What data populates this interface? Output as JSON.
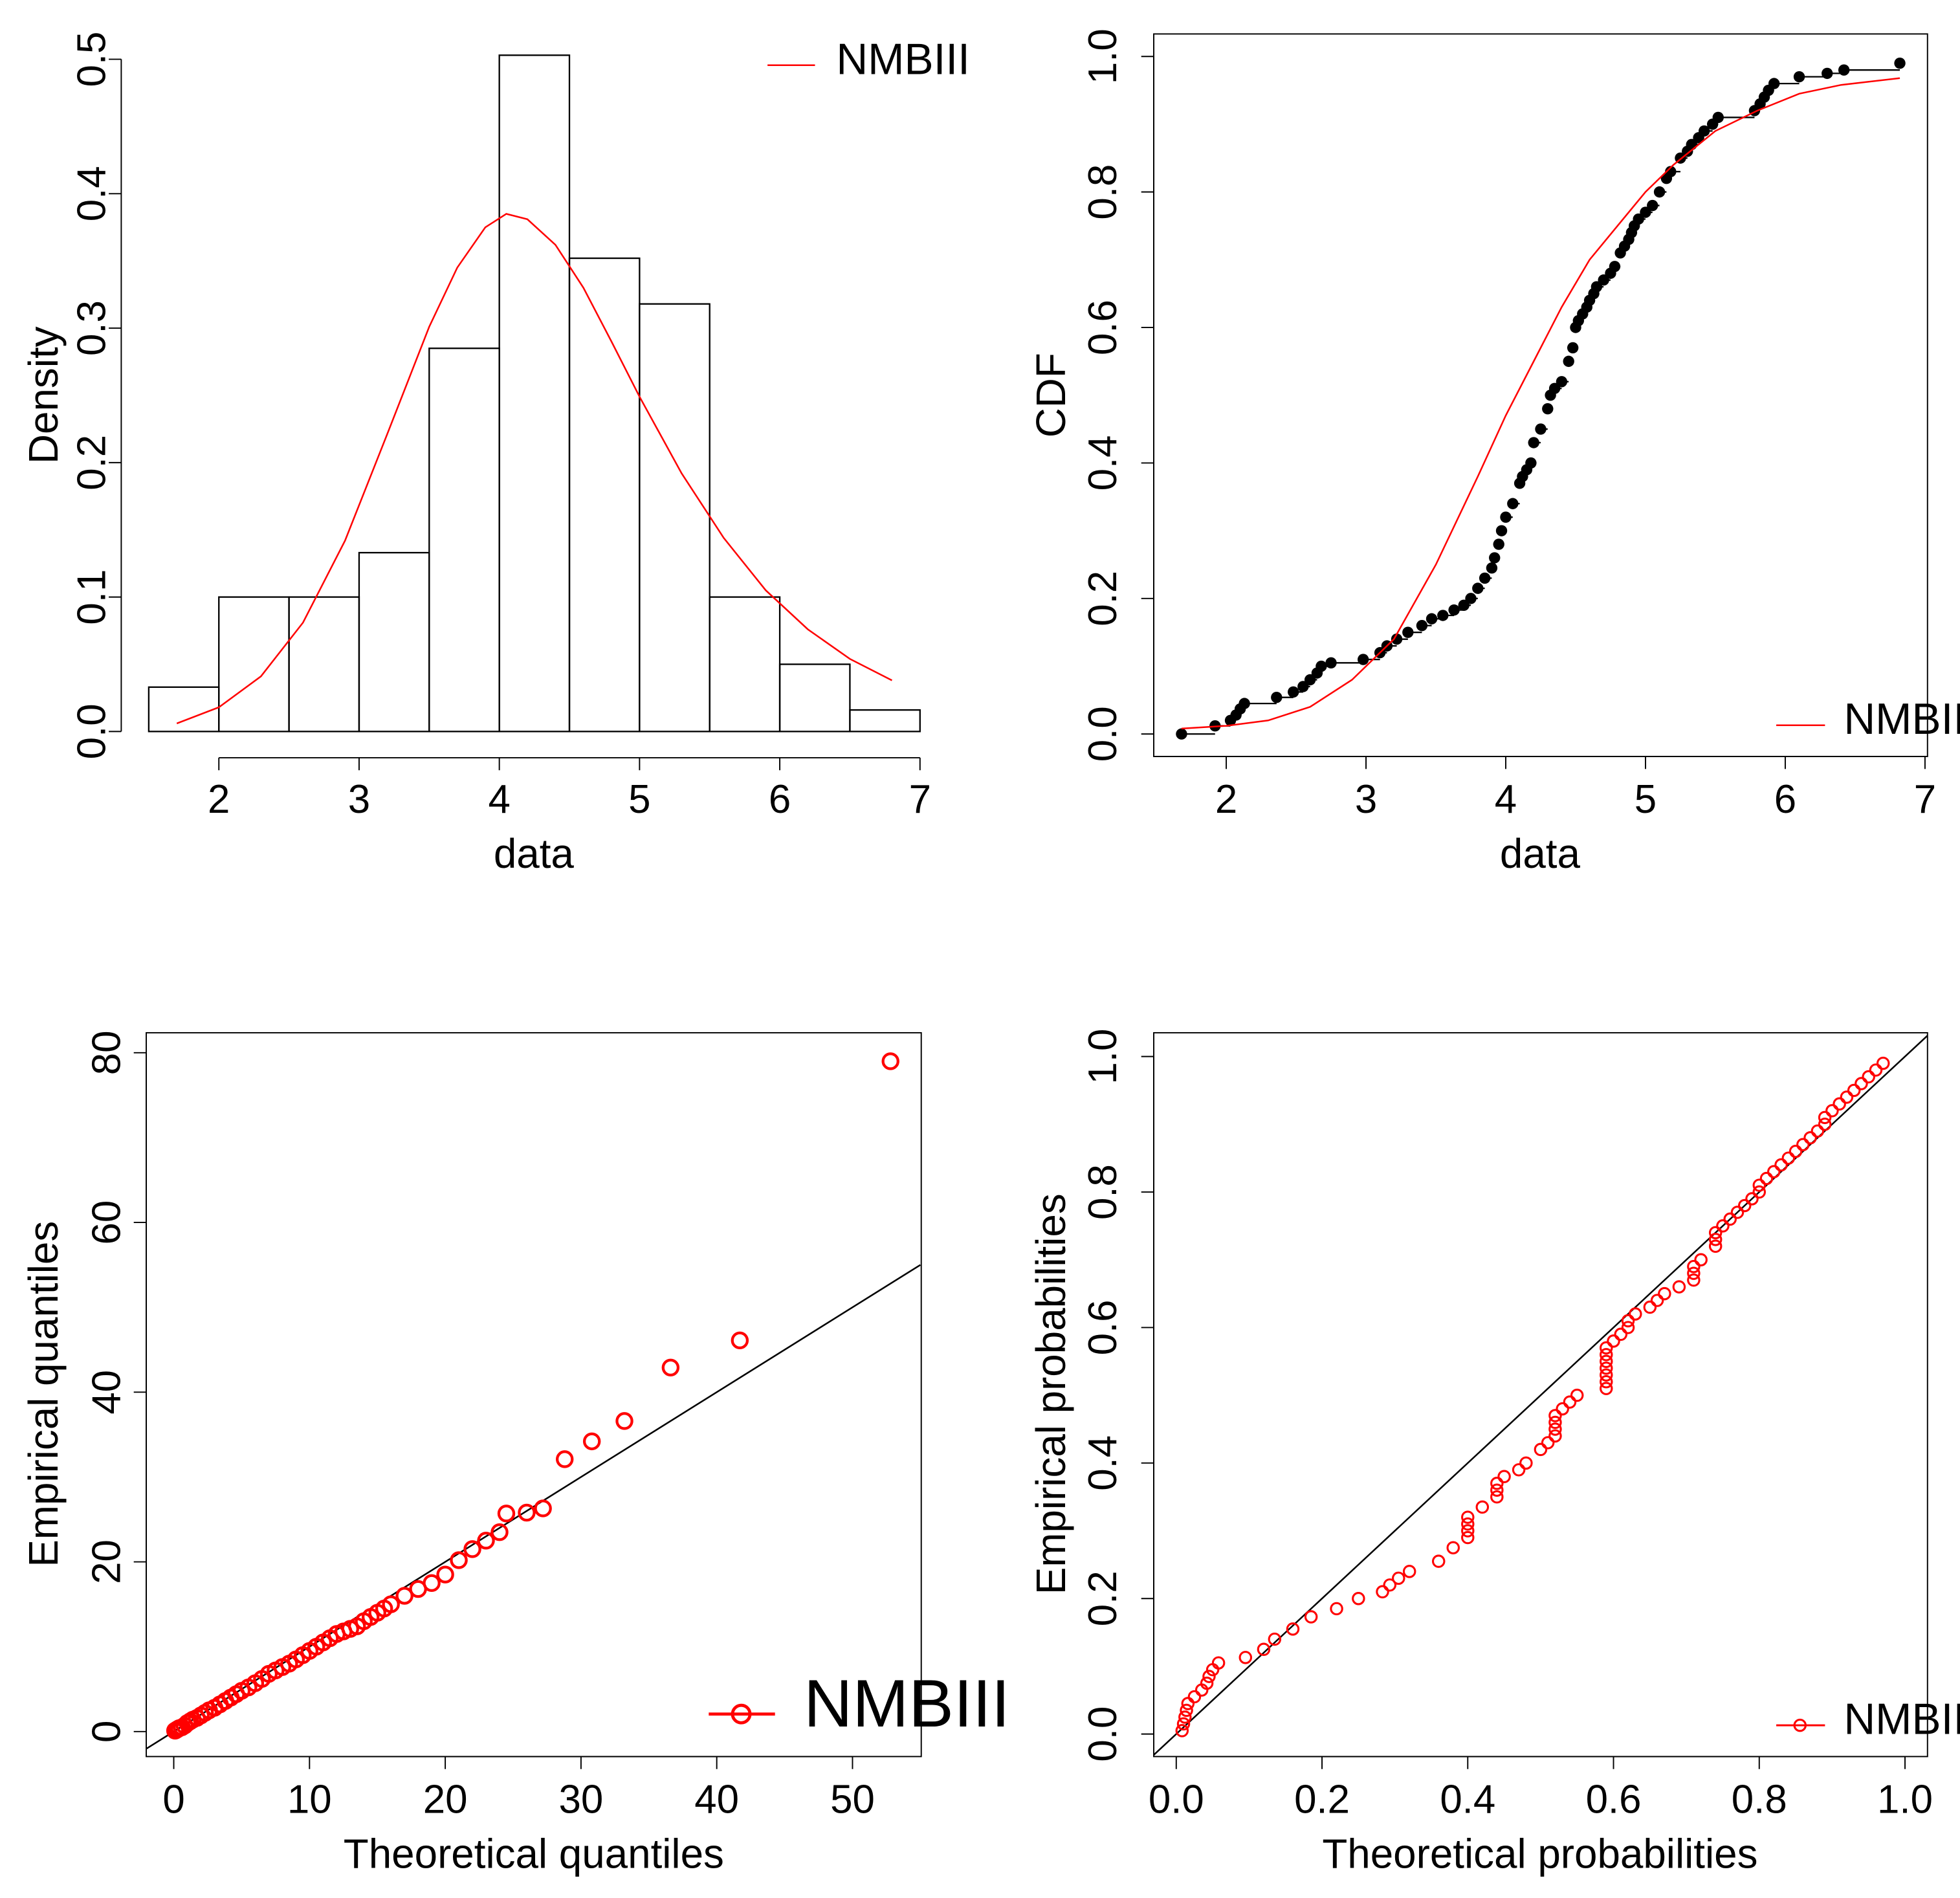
{
  "colors": {
    "fit": "#ff0000",
    "data": "#000000",
    "background": "#ffffff"
  },
  "chart_data": [
    {
      "id": "hist",
      "type": "bar",
      "title": "",
      "xlabel": "data",
      "ylabel": "Density",
      "xlim": [
        1.5,
        7
      ],
      "ylim": [
        0,
        0.5
      ],
      "xticks": [
        "2",
        "3",
        "4",
        "5",
        "6",
        "7"
      ],
      "yticks": [
        "0.0",
        "0.1",
        "0.2",
        "0.3",
        "0.4",
        "0.5"
      ],
      "bins": [
        {
          "from": 1.5,
          "to": 2.0,
          "density": 0.033
        },
        {
          "from": 2.0,
          "to": 2.5,
          "density": 0.1
        },
        {
          "from": 2.5,
          "to": 3.0,
          "density": 0.1
        },
        {
          "from": 3.0,
          "to": 3.5,
          "density": 0.133
        },
        {
          "from": 3.5,
          "to": 4.0,
          "density": 0.285
        },
        {
          "from": 4.0,
          "to": 4.5,
          "density": 0.503
        },
        {
          "from": 4.5,
          "to": 5.0,
          "density": 0.352
        },
        {
          "from": 5.0,
          "to": 5.5,
          "density": 0.318
        },
        {
          "from": 5.5,
          "to": 6.0,
          "density": 0.1
        },
        {
          "from": 6.0,
          "to": 6.5,
          "density": 0.05
        },
        {
          "from": 6.5,
          "to": 7.0,
          "density": 0.016
        }
      ],
      "fit_curve": {
        "name": "NMBIII",
        "x": [
          1.7,
          2.0,
          2.3,
          2.6,
          2.9,
          3.2,
          3.5,
          3.7,
          3.9,
          4.05,
          4.2,
          4.4,
          4.6,
          4.8,
          5.0,
          5.3,
          5.6,
          5.9,
          6.2,
          6.5,
          6.8
        ],
        "y": [
          0.006,
          0.018,
          0.041,
          0.081,
          0.142,
          0.221,
          0.301,
          0.345,
          0.375,
          0.385,
          0.381,
          0.362,
          0.33,
          0.29,
          0.249,
          0.192,
          0.144,
          0.105,
          0.076,
          0.054,
          0.038
        ]
      },
      "legend": {
        "position": "top-right",
        "label": "NMBIII"
      }
    },
    {
      "id": "cdf",
      "type": "line",
      "title": "",
      "xlabel": "data",
      "ylabel": "CDF",
      "xlim": [
        1.5,
        7
      ],
      "ylim": [
        0,
        1
      ],
      "xticks": [
        "2",
        "3",
        "4",
        "5",
        "6",
        "7"
      ],
      "yticks": [
        "0.0",
        "0.2",
        "0.4",
        "0.6",
        "0.8",
        "1.0"
      ],
      "ecdf": {
        "x": [
          1.68,
          1.92,
          2.03,
          2.07,
          2.1,
          2.13,
          2.36,
          2.48,
          2.55,
          2.6,
          2.65,
          2.68,
          2.75,
          2.98,
          3.1,
          3.15,
          3.22,
          3.3,
          3.4,
          3.47,
          3.55,
          3.63,
          3.7,
          3.75,
          3.8,
          3.85,
          3.9,
          3.92,
          3.95,
          3.97,
          4.0,
          4.05,
          4.1,
          4.12,
          4.15,
          4.18,
          4.2,
          4.25,
          4.3,
          4.32,
          4.35,
          4.4,
          4.45,
          4.48,
          4.5,
          4.52,
          4.55,
          4.58,
          4.6,
          4.63,
          4.65,
          4.7,
          4.75,
          4.78,
          4.82,
          4.85,
          4.88,
          4.9,
          4.92,
          4.95,
          5.0,
          5.05,
          5.1,
          5.15,
          5.18,
          5.25,
          5.3,
          5.33,
          5.38,
          5.42,
          5.48,
          5.52,
          5.78,
          5.82,
          5.85,
          5.88,
          5.92,
          6.1,
          6.3,
          6.42,
          6.82
        ],
        "y": [
          0.0,
          0.012,
          0.02,
          0.028,
          0.037,
          0.045,
          0.054,
          0.062,
          0.07,
          0.08,
          0.09,
          0.1,
          0.105,
          0.11,
          0.12,
          0.13,
          0.14,
          0.15,
          0.16,
          0.17,
          0.175,
          0.183,
          0.19,
          0.2,
          0.215,
          0.23,
          0.245,
          0.26,
          0.28,
          0.3,
          0.32,
          0.34,
          0.37,
          0.38,
          0.39,
          0.4,
          0.43,
          0.45,
          0.48,
          0.5,
          0.51,
          0.52,
          0.55,
          0.57,
          0.6,
          0.61,
          0.62,
          0.63,
          0.64,
          0.65,
          0.66,
          0.67,
          0.68,
          0.69,
          0.71,
          0.72,
          0.73,
          0.74,
          0.75,
          0.76,
          0.77,
          0.78,
          0.8,
          0.82,
          0.83,
          0.85,
          0.86,
          0.87,
          0.88,
          0.89,
          0.9,
          0.91,
          0.92,
          0.93,
          0.94,
          0.95,
          0.96,
          0.97,
          0.975,
          0.98,
          0.99
        ]
      },
      "fit_curve": {
        "name": "NMBIII",
        "x": [
          1.68,
          2.0,
          2.3,
          2.6,
          2.9,
          3.2,
          3.5,
          3.8,
          4.0,
          4.2,
          4.4,
          4.6,
          4.8,
          5.0,
          5.2,
          5.5,
          5.8,
          6.1,
          6.4,
          6.82
        ],
        "y": [
          0.008,
          0.012,
          0.02,
          0.04,
          0.08,
          0.14,
          0.25,
          0.38,
          0.47,
          0.55,
          0.63,
          0.7,
          0.75,
          0.8,
          0.84,
          0.89,
          0.92,
          0.945,
          0.958,
          0.968
        ]
      },
      "legend": {
        "position": "bottom-right",
        "label": "NMBIII"
      }
    },
    {
      "id": "qq",
      "type": "scatter",
      "title": "",
      "xlabel": "Theoretical quantiles",
      "ylabel": "Empirical quantiles",
      "xlim": [
        0,
        55
      ],
      "ylim": [
        0,
        80
      ],
      "xticks": [
        "0",
        "10",
        "20",
        "30",
        "40",
        "50"
      ],
      "yticks": [
        "0",
        "20",
        "40",
        "60",
        "80"
      ],
      "points": [
        [
          0.1,
          0.1
        ],
        [
          0.2,
          0.2
        ],
        [
          0.3,
          0.3
        ],
        [
          0.4,
          0.4
        ],
        [
          0.6,
          0.5
        ],
        [
          0.8,
          0.7
        ],
        [
          1.0,
          1.0
        ],
        [
          1.2,
          1.2
        ],
        [
          1.4,
          1.4
        ],
        [
          1.7,
          1.6
        ],
        [
          2.0,
          1.9
        ],
        [
          2.3,
          2.2
        ],
        [
          2.6,
          2.5
        ],
        [
          3.0,
          2.8
        ],
        [
          3.4,
          3.2
        ],
        [
          3.8,
          3.6
        ],
        [
          4.2,
          4.0
        ],
        [
          4.6,
          4.4
        ],
        [
          5.0,
          4.8
        ],
        [
          5.5,
          5.2
        ],
        [
          6.0,
          5.7
        ],
        [
          6.5,
          6.2
        ],
        [
          7.0,
          6.8
        ],
        [
          7.5,
          7.2
        ],
        [
          8.0,
          7.6
        ],
        [
          8.5,
          8.0
        ],
        [
          9.0,
          8.5
        ],
        [
          9.5,
          9.0
        ],
        [
          10.0,
          9.5
        ],
        [
          10.5,
          10.0
        ],
        [
          11.0,
          10.5
        ],
        [
          11.5,
          11.0
        ],
        [
          12.0,
          11.5
        ],
        [
          12.5,
          11.8
        ],
        [
          13.0,
          12.1
        ],
        [
          13.5,
          12.4
        ],
        [
          14.0,
          13.0
        ],
        [
          14.5,
          13.5
        ],
        [
          15.0,
          14.0
        ],
        [
          15.5,
          14.5
        ],
        [
          16.0,
          15.0
        ],
        [
          17.0,
          16.0
        ],
        [
          18.0,
          16.8
        ],
        [
          19.0,
          17.5
        ],
        [
          20.0,
          18.5
        ],
        [
          21.0,
          20.2
        ],
        [
          22.0,
          21.5
        ],
        [
          23.0,
          22.5
        ],
        [
          24.0,
          23.5
        ],
        [
          24.5,
          25.7
        ],
        [
          26.0,
          25.8
        ],
        [
          27.2,
          26.3
        ],
        [
          28.8,
          32.1
        ],
        [
          30.8,
          34.2
        ],
        [
          33.2,
          36.6
        ],
        [
          36.6,
          42.9
        ],
        [
          41.7,
          46.1
        ],
        [
          52.8,
          79.0
        ]
      ],
      "reference_line": {
        "intercept": 0,
        "slope": 1
      },
      "legend": {
        "position": "bottom-right",
        "label": "NMBIII"
      }
    },
    {
      "id": "pp",
      "type": "scatter",
      "title": "",
      "xlabel": "Theoretical probabilities",
      "ylabel": "Empirical probabilities",
      "xlim": [
        0,
        1
      ],
      "ylim": [
        0,
        1
      ],
      "xticks": [
        "0.0",
        "0.2",
        "0.4",
        "0.6",
        "0.8",
        "1.0"
      ],
      "yticks": [
        "0.0",
        "0.2",
        "0.4",
        "0.6",
        "0.8",
        "1.0"
      ],
      "points": [
        [
          0.008,
          0.005
        ],
        [
          0.01,
          0.015
        ],
        [
          0.012,
          0.025
        ],
        [
          0.014,
          0.035
        ],
        [
          0.016,
          0.045
        ],
        [
          0.025,
          0.055
        ],
        [
          0.035,
          0.065
        ],
        [
          0.042,
          0.075
        ],
        [
          0.045,
          0.085
        ],
        [
          0.05,
          0.095
        ],
        [
          0.058,
          0.105
        ],
        [
          0.095,
          0.113
        ],
        [
          0.12,
          0.125
        ],
        [
          0.135,
          0.14
        ],
        [
          0.16,
          0.155
        ],
        [
          0.185,
          0.173
        ],
        [
          0.22,
          0.185
        ],
        [
          0.25,
          0.2
        ],
        [
          0.283,
          0.21
        ],
        [
          0.293,
          0.22
        ],
        [
          0.305,
          0.23
        ],
        [
          0.32,
          0.24
        ],
        [
          0.36,
          0.255
        ],
        [
          0.38,
          0.275
        ],
        [
          0.4,
          0.29
        ],
        [
          0.4,
          0.3
        ],
        [
          0.4,
          0.31
        ],
        [
          0.4,
          0.32
        ],
        [
          0.42,
          0.335
        ],
        [
          0.44,
          0.35
        ],
        [
          0.44,
          0.36
        ],
        [
          0.44,
          0.37
        ],
        [
          0.45,
          0.38
        ],
        [
          0.47,
          0.39
        ],
        [
          0.48,
          0.4
        ],
        [
          0.5,
          0.42
        ],
        [
          0.51,
          0.43
        ],
        [
          0.52,
          0.44
        ],
        [
          0.52,
          0.45
        ],
        [
          0.52,
          0.46
        ],
        [
          0.52,
          0.47
        ],
        [
          0.53,
          0.48
        ],
        [
          0.54,
          0.49
        ],
        [
          0.55,
          0.5
        ],
        [
          0.59,
          0.51
        ],
        [
          0.59,
          0.52
        ],
        [
          0.59,
          0.53
        ],
        [
          0.59,
          0.54
        ],
        [
          0.59,
          0.55
        ],
        [
          0.59,
          0.56
        ],
        [
          0.59,
          0.57
        ],
        [
          0.6,
          0.58
        ],
        [
          0.61,
          0.59
        ],
        [
          0.62,
          0.6
        ],
        [
          0.62,
          0.61
        ],
        [
          0.63,
          0.62
        ],
        [
          0.65,
          0.63
        ],
        [
          0.66,
          0.64
        ],
        [
          0.67,
          0.65
        ],
        [
          0.69,
          0.66
        ],
        [
          0.71,
          0.67
        ],
        [
          0.71,
          0.68
        ],
        [
          0.71,
          0.69
        ],
        [
          0.72,
          0.7
        ],
        [
          0.74,
          0.72
        ],
        [
          0.74,
          0.73
        ],
        [
          0.74,
          0.74
        ],
        [
          0.75,
          0.75
        ],
        [
          0.76,
          0.76
        ],
        [
          0.77,
          0.77
        ],
        [
          0.78,
          0.78
        ],
        [
          0.79,
          0.79
        ],
        [
          0.8,
          0.8
        ],
        [
          0.8,
          0.81
        ],
        [
          0.81,
          0.82
        ],
        [
          0.82,
          0.83
        ],
        [
          0.83,
          0.84
        ],
        [
          0.84,
          0.85
        ],
        [
          0.85,
          0.86
        ],
        [
          0.86,
          0.87
        ],
        [
          0.87,
          0.88
        ],
        [
          0.88,
          0.89
        ],
        [
          0.89,
          0.9
        ],
        [
          0.89,
          0.91
        ],
        [
          0.9,
          0.92
        ],
        [
          0.91,
          0.93
        ],
        [
          0.92,
          0.94
        ],
        [
          0.93,
          0.95
        ],
        [
          0.94,
          0.96
        ],
        [
          0.95,
          0.97
        ],
        [
          0.96,
          0.98
        ],
        [
          0.97,
          0.99
        ]
      ],
      "reference_line": {
        "intercept": 0,
        "slope": 1
      },
      "legend": {
        "position": "bottom-right",
        "label": "NMBIII"
      }
    }
  ]
}
